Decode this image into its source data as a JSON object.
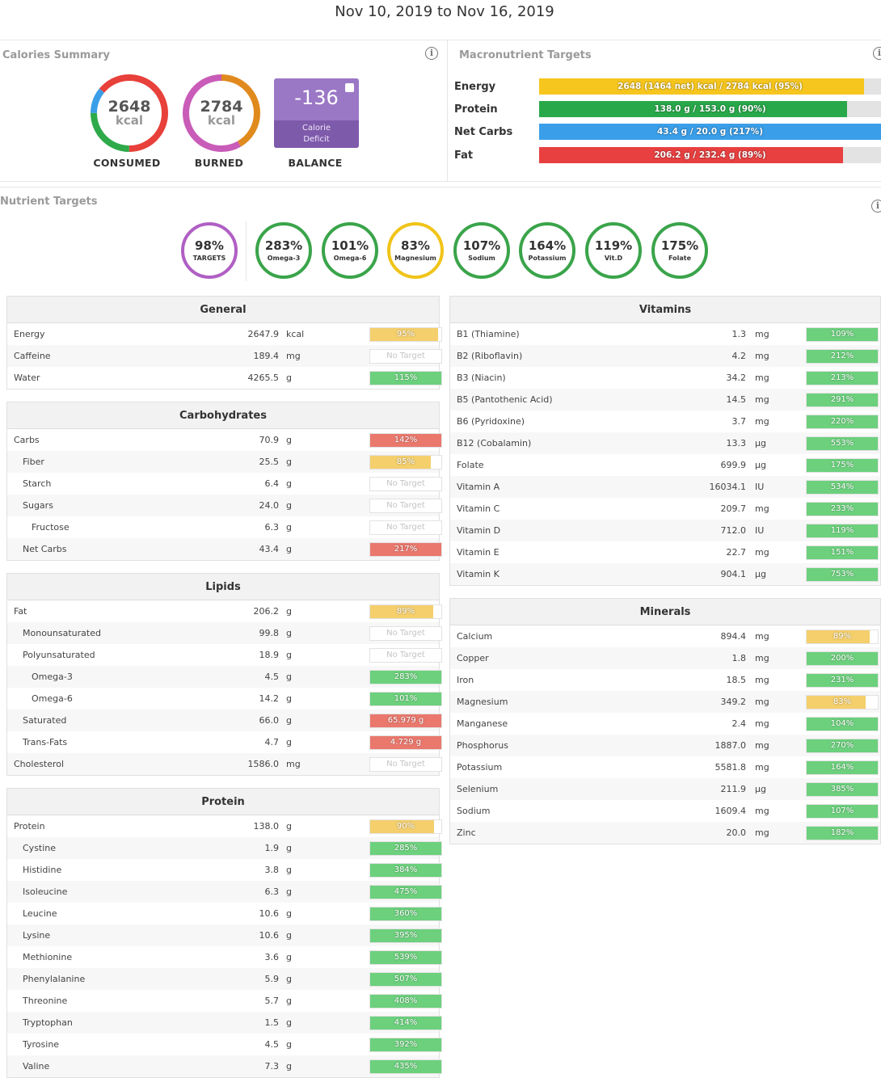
{
  "header": {
    "date_range": "Nov 10, 2019 to Nov 16, 2019"
  },
  "calories_summary": {
    "title": "Calories Summary",
    "consumed": {
      "value": "2648",
      "unit": "kcal",
      "label": "CONSUMED"
    },
    "burned": {
      "value": "2784",
      "unit": "kcal",
      "label": "BURNED"
    },
    "balance": {
      "value": "-136",
      "sub_line1": "Calorie",
      "sub_line2": "Deficit",
      "label": "BALANCE"
    }
  },
  "macro_targets": {
    "title": "Macronutrient Targets",
    "rows": [
      {
        "label": "Energy",
        "text": "2648 (1464 net) kcal / 2784 kcal (95%)",
        "fill": 0.95,
        "color": "#f6c61e"
      },
      {
        "label": "Protein",
        "text": "138.0 g / 153.0 g (90%)",
        "fill": 0.9,
        "color": "#29a84a"
      },
      {
        "label": "Net Carbs",
        "text": "43.4 g / 20.0 g (217%)",
        "fill": 1.0,
        "color": "#3a9ee8"
      },
      {
        "label": "Fat",
        "text": "206.2 g / 232.4 g (89%)",
        "fill": 0.89,
        "color": "#e84040"
      }
    ]
  },
  "nutrient_targets": {
    "title": "Nutrient Targets",
    "circles": [
      {
        "pct": "98%",
        "name": "TARGETS",
        "color": "#b05fc4"
      },
      {
        "pct": "283%",
        "name": "Omega-3",
        "color": "#3aa44a"
      },
      {
        "pct": "101%",
        "name": "Omega-6",
        "color": "#3aa44a"
      },
      {
        "pct": "83%",
        "name": "Magnesium",
        "color": "#f0c419"
      },
      {
        "pct": "107%",
        "name": "Sodium",
        "color": "#3aa44a"
      },
      {
        "pct": "164%",
        "name": "Potassium",
        "color": "#3aa44a"
      },
      {
        "pct": "119%",
        "name": "Vit.D",
        "color": "#3aa44a"
      },
      {
        "pct": "175%",
        "name": "Folate",
        "color": "#3aa44a"
      }
    ]
  },
  "colors": {
    "green": "#6cd07d",
    "yellow": "#f4cf6c",
    "red": "#ea786d"
  },
  "panels": {
    "general": {
      "title": "General",
      "rows": [
        {
          "name": "Energy",
          "value": "2647.9",
          "unit": "kcal",
          "bar": "95%",
          "status": "yellow",
          "fill": 0.95,
          "indent": 0
        },
        {
          "name": "Caffeine",
          "value": "189.4",
          "unit": "mg",
          "bar": "No Target",
          "status": "none",
          "fill": 0,
          "indent": 0
        },
        {
          "name": "Water",
          "value": "4265.5",
          "unit": "g",
          "bar": "115%",
          "status": "green",
          "fill": 1,
          "indent": 0
        }
      ]
    },
    "carbohydrates": {
      "title": "Carbohydrates",
      "rows": [
        {
          "name": "Carbs",
          "value": "70.9",
          "unit": "g",
          "bar": "142%",
          "status": "red",
          "fill": 1,
          "indent": 0
        },
        {
          "name": "Fiber",
          "value": "25.5",
          "unit": "g",
          "bar": "85%",
          "status": "yellow",
          "fill": 0.85,
          "indent": 1
        },
        {
          "name": "Starch",
          "value": "6.4",
          "unit": "g",
          "bar": "No Target",
          "status": "none",
          "fill": 0,
          "indent": 1
        },
        {
          "name": "Sugars",
          "value": "24.0",
          "unit": "g",
          "bar": "No Target",
          "status": "none",
          "fill": 0,
          "indent": 1
        },
        {
          "name": "Fructose",
          "value": "6.3",
          "unit": "g",
          "bar": "No Target",
          "status": "none",
          "fill": 0,
          "indent": 2
        },
        {
          "name": "Net Carbs",
          "value": "43.4",
          "unit": "g",
          "bar": "217%",
          "status": "red",
          "fill": 1,
          "indent": 1
        }
      ]
    },
    "lipids": {
      "title": "Lipids",
      "rows": [
        {
          "name": "Fat",
          "value": "206.2",
          "unit": "g",
          "bar": "89%",
          "status": "yellow",
          "fill": 0.89,
          "indent": 0
        },
        {
          "name": "Monounsaturated",
          "value": "99.8",
          "unit": "g",
          "bar": "No Target",
          "status": "none",
          "fill": 0,
          "indent": 1
        },
        {
          "name": "Polyunsaturated",
          "value": "18.9",
          "unit": "g",
          "bar": "No Target",
          "status": "none",
          "fill": 0,
          "indent": 1
        },
        {
          "name": "Omega-3",
          "value": "4.5",
          "unit": "g",
          "bar": "283%",
          "status": "green",
          "fill": 1,
          "indent": 2
        },
        {
          "name": "Omega-6",
          "value": "14.2",
          "unit": "g",
          "bar": "101%",
          "status": "green",
          "fill": 1,
          "indent": 2
        },
        {
          "name": "Saturated",
          "value": "66.0",
          "unit": "g",
          "bar": "65.979 g",
          "status": "red",
          "fill": 1,
          "indent": 1
        },
        {
          "name": "Trans-Fats",
          "value": "4.7",
          "unit": "g",
          "bar": "4.729 g",
          "status": "red",
          "fill": 1,
          "indent": 1
        },
        {
          "name": "Cholesterol",
          "value": "1586.0",
          "unit": "mg",
          "bar": "No Target",
          "status": "none",
          "fill": 0,
          "indent": 0
        }
      ]
    },
    "protein": {
      "title": "Protein",
      "rows": [
        {
          "name": "Protein",
          "value": "138.0",
          "unit": "g",
          "bar": "90%",
          "status": "yellow",
          "fill": 0.9,
          "indent": 0
        },
        {
          "name": "Cystine",
          "value": "1.9",
          "unit": "g",
          "bar": "285%",
          "status": "green",
          "fill": 1,
          "indent": 1
        },
        {
          "name": "Histidine",
          "value": "3.8",
          "unit": "g",
          "bar": "384%",
          "status": "green",
          "fill": 1,
          "indent": 1
        },
        {
          "name": "Isoleucine",
          "value": "6.3",
          "unit": "g",
          "bar": "475%",
          "status": "green",
          "fill": 1,
          "indent": 1
        },
        {
          "name": "Leucine",
          "value": "10.6",
          "unit": "g",
          "bar": "360%",
          "status": "green",
          "fill": 1,
          "indent": 1
        },
        {
          "name": "Lysine",
          "value": "10.6",
          "unit": "g",
          "bar": "395%",
          "status": "green",
          "fill": 1,
          "indent": 1
        },
        {
          "name": "Methionine",
          "value": "3.6",
          "unit": "g",
          "bar": "539%",
          "status": "green",
          "fill": 1,
          "indent": 1
        },
        {
          "name": "Phenylalanine",
          "value": "5.9",
          "unit": "g",
          "bar": "507%",
          "status": "green",
          "fill": 1,
          "indent": 1
        },
        {
          "name": "Threonine",
          "value": "5.7",
          "unit": "g",
          "bar": "408%",
          "status": "green",
          "fill": 1,
          "indent": 1
        },
        {
          "name": "Tryptophan",
          "value": "1.5",
          "unit": "g",
          "bar": "414%",
          "status": "green",
          "fill": 1,
          "indent": 1
        },
        {
          "name": "Tyrosine",
          "value": "4.5",
          "unit": "g",
          "bar": "392%",
          "status": "green",
          "fill": 1,
          "indent": 1
        },
        {
          "name": "Valine",
          "value": "7.3",
          "unit": "g",
          "bar": "435%",
          "status": "green",
          "fill": 1,
          "indent": 1
        }
      ]
    },
    "vitamins": {
      "title": "Vitamins",
      "rows": [
        {
          "name": "B1 (Thiamine)",
          "value": "1.3",
          "unit": "mg",
          "bar": "109%",
          "status": "green",
          "fill": 1,
          "indent": 0
        },
        {
          "name": "B2 (Riboflavin)",
          "value": "4.2",
          "unit": "mg",
          "bar": "212%",
          "status": "green",
          "fill": 1,
          "indent": 0
        },
        {
          "name": "B3 (Niacin)",
          "value": "34.2",
          "unit": "mg",
          "bar": "213%",
          "status": "green",
          "fill": 1,
          "indent": 0
        },
        {
          "name": "B5 (Pantothenic Acid)",
          "value": "14.5",
          "unit": "mg",
          "bar": "291%",
          "status": "green",
          "fill": 1,
          "indent": 0
        },
        {
          "name": "B6 (Pyridoxine)",
          "value": "3.7",
          "unit": "mg",
          "bar": "220%",
          "status": "green",
          "fill": 1,
          "indent": 0
        },
        {
          "name": "B12 (Cobalamin)",
          "value": "13.3",
          "unit": "µg",
          "bar": "553%",
          "status": "green",
          "fill": 1,
          "indent": 0
        },
        {
          "name": "Folate",
          "value": "699.9",
          "unit": "µg",
          "bar": "175%",
          "status": "green",
          "fill": 1,
          "indent": 0
        },
        {
          "name": "Vitamin A",
          "value": "16034.1",
          "unit": "IU",
          "bar": "534%",
          "status": "green",
          "fill": 1,
          "indent": 0
        },
        {
          "name": "Vitamin C",
          "value": "209.7",
          "unit": "mg",
          "bar": "233%",
          "status": "green",
          "fill": 1,
          "indent": 0
        },
        {
          "name": "Vitamin D",
          "value": "712.0",
          "unit": "IU",
          "bar": "119%",
          "status": "green",
          "fill": 1,
          "indent": 0
        },
        {
          "name": "Vitamin E",
          "value": "22.7",
          "unit": "mg",
          "bar": "151%",
          "status": "green",
          "fill": 1,
          "indent": 0
        },
        {
          "name": "Vitamin K",
          "value": "904.1",
          "unit": "µg",
          "bar": "753%",
          "status": "green",
          "fill": 1,
          "indent": 0
        }
      ]
    },
    "minerals": {
      "title": "Minerals",
      "rows": [
        {
          "name": "Calcium",
          "value": "894.4",
          "unit": "mg",
          "bar": "89%",
          "status": "yellow",
          "fill": 0.89,
          "indent": 0
        },
        {
          "name": "Copper",
          "value": "1.8",
          "unit": "mg",
          "bar": "200%",
          "status": "green",
          "fill": 1,
          "indent": 0
        },
        {
          "name": "Iron",
          "value": "18.5",
          "unit": "mg",
          "bar": "231%",
          "status": "green",
          "fill": 1,
          "indent": 0
        },
        {
          "name": "Magnesium",
          "value": "349.2",
          "unit": "mg",
          "bar": "83%",
          "status": "yellow",
          "fill": 0.83,
          "indent": 0
        },
        {
          "name": "Manganese",
          "value": "2.4",
          "unit": "mg",
          "bar": "104%",
          "status": "green",
          "fill": 1,
          "indent": 0
        },
        {
          "name": "Phosphorus",
          "value": "1887.0",
          "unit": "mg",
          "bar": "270%",
          "status": "green",
          "fill": 1,
          "indent": 0
        },
        {
          "name": "Potassium",
          "value": "5581.8",
          "unit": "mg",
          "bar": "164%",
          "status": "green",
          "fill": 1,
          "indent": 0
        },
        {
          "name": "Selenium",
          "value": "211.9",
          "unit": "µg",
          "bar": "385%",
          "status": "green",
          "fill": 1,
          "indent": 0
        },
        {
          "name": "Sodium",
          "value": "1609.4",
          "unit": "mg",
          "bar": "107%",
          "status": "green",
          "fill": 1,
          "indent": 0
        },
        {
          "name": "Zinc",
          "value": "20.0",
          "unit": "mg",
          "bar": "182%",
          "status": "green",
          "fill": 1,
          "indent": 0
        }
      ]
    }
  }
}
